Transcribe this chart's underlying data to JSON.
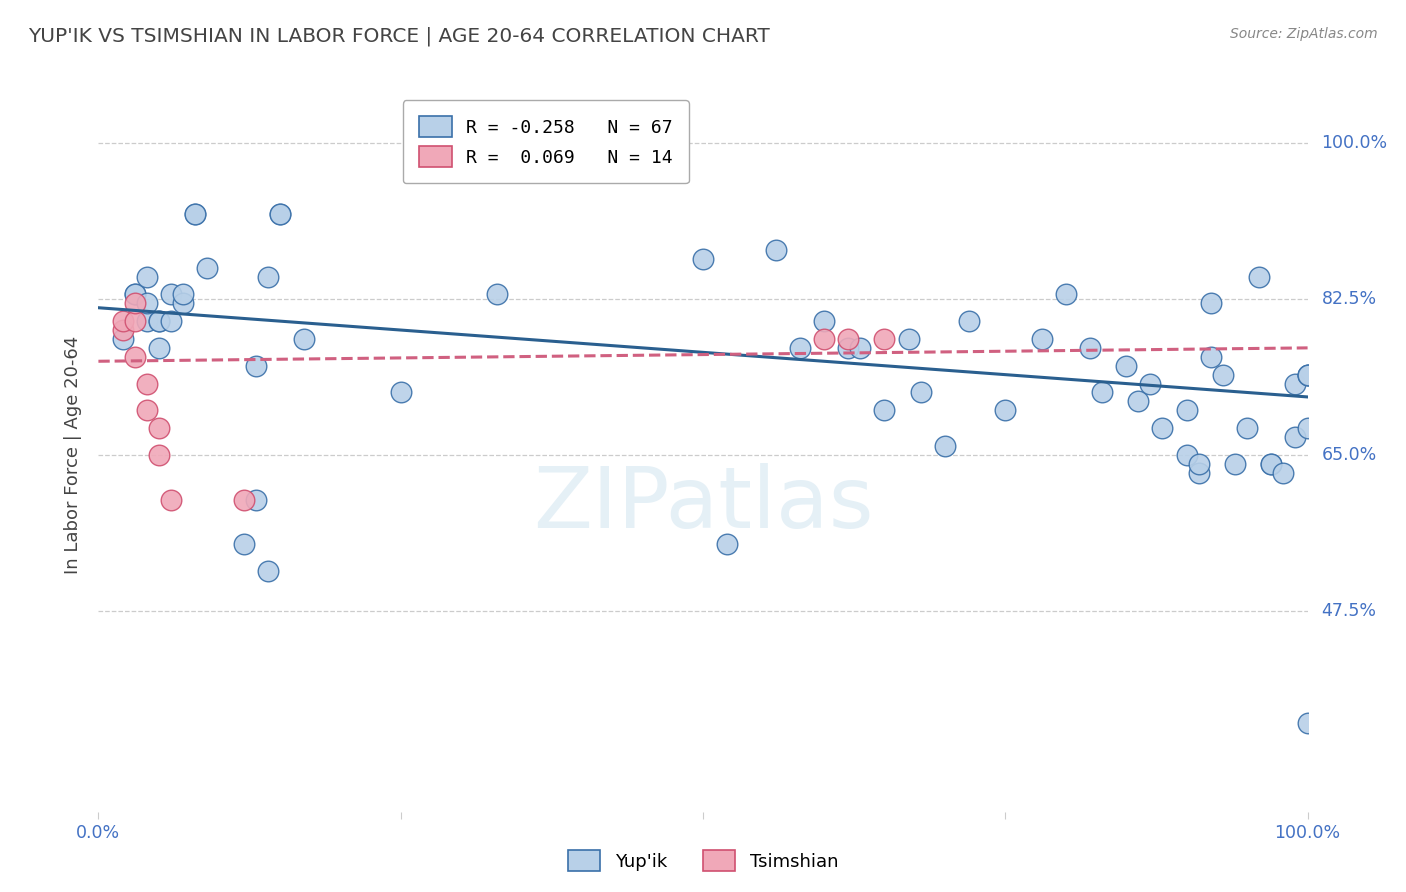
{
  "title": "YUP'IK VS TSIMSHIAN IN LABOR FORCE | AGE 20-64 CORRELATION CHART",
  "source": "Source: ZipAtlas.com",
  "ylabel": "In Labor Force | Age 20-64",
  "ytick_values": [
    1.0,
    0.825,
    0.65,
    0.475
  ],
  "ytick_labels": [
    "100.0%",
    "82.5%",
    "65.0%",
    "47.5%"
  ],
  "xlim": [
    0.0,
    1.0
  ],
  "ylim": [
    0.25,
    1.05
  ],
  "legend_blue_r": "-0.258",
  "legend_blue_n": "67",
  "legend_pink_r": "0.069",
  "legend_pink_n": "14",
  "watermark": "ZIPatlas",
  "blue_face": "#b8d0e8",
  "blue_edge": "#3a70a9",
  "pink_face": "#f0a8b8",
  "pink_edge": "#d05070",
  "blue_line": "#2a5f8f",
  "pink_line": "#d06080",
  "grid_color": "#cccccc",
  "title_color": "#444444",
  "axis_blue": "#4472c4",
  "bg": "#ffffff",
  "blue_x": [
    0.02,
    0.03,
    0.03,
    0.04,
    0.04,
    0.04,
    0.05,
    0.05,
    0.05,
    0.06,
    0.06,
    0.07,
    0.07,
    0.08,
    0.08,
    0.09,
    0.12,
    0.13,
    0.13,
    0.14,
    0.14,
    0.15,
    0.15,
    0.17,
    0.25,
    0.33,
    0.5,
    0.52,
    0.56,
    0.58,
    0.6,
    0.62,
    0.63,
    0.65,
    0.67,
    0.68,
    0.7,
    0.72,
    0.75,
    0.78,
    0.8,
    0.82,
    0.83,
    0.85,
    0.86,
    0.87,
    0.88,
    0.9,
    0.9,
    0.91,
    0.91,
    0.92,
    0.92,
    0.93,
    0.94,
    0.95,
    0.96,
    0.97,
    0.97,
    0.98,
    0.99,
    0.99,
    1.0,
    1.0,
    1.0,
    1.0,
    1.0
  ],
  "blue_y": [
    0.78,
    0.83,
    0.83,
    0.85,
    0.8,
    0.82,
    0.8,
    0.77,
    0.8,
    0.83,
    0.8,
    0.82,
    0.83,
    0.92,
    0.92,
    0.86,
    0.55,
    0.6,
    0.75,
    0.85,
    0.52,
    0.92,
    0.92,
    0.78,
    0.72,
    0.83,
    0.87,
    0.55,
    0.88,
    0.77,
    0.8,
    0.77,
    0.77,
    0.7,
    0.78,
    0.72,
    0.66,
    0.8,
    0.7,
    0.78,
    0.83,
    0.77,
    0.72,
    0.75,
    0.71,
    0.73,
    0.68,
    0.7,
    0.65,
    0.63,
    0.64,
    0.82,
    0.76,
    0.74,
    0.64,
    0.68,
    0.85,
    0.64,
    0.64,
    0.63,
    0.73,
    0.67,
    0.35,
    0.68,
    0.74,
    0.74,
    0.74
  ],
  "pink_x": [
    0.02,
    0.02,
    0.03,
    0.03,
    0.03,
    0.04,
    0.04,
    0.05,
    0.05,
    0.06,
    0.12,
    0.6,
    0.62,
    0.65
  ],
  "pink_y": [
    0.79,
    0.8,
    0.76,
    0.8,
    0.82,
    0.73,
    0.7,
    0.68,
    0.65,
    0.6,
    0.6,
    0.78,
    0.78,
    0.78
  ],
  "blue_trend": [
    0.0,
    1.0,
    0.815,
    0.715
  ],
  "pink_trend": [
    0.0,
    1.0,
    0.755,
    0.77
  ]
}
